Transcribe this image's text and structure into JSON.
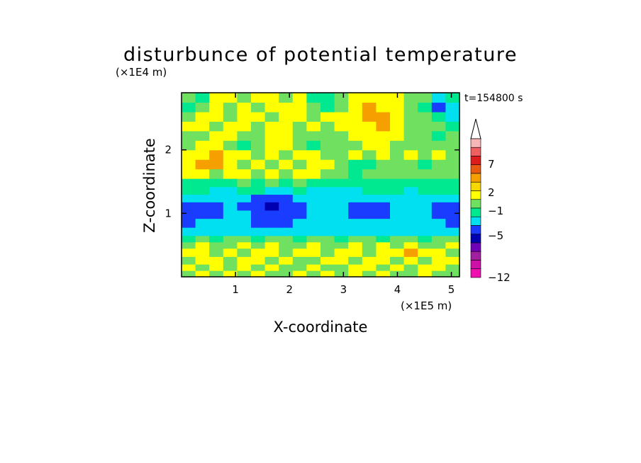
{
  "chart_data": {
    "type": "heatmap",
    "title": "disturbunce of potential temperature",
    "xlabel": "X-coordinate",
    "ylabel": "Z-coordinate",
    "x_unit": "(×1E5 m)",
    "y_unit": "(×1E4 m)",
    "time_label": "t=154800 s",
    "xlim": [
      0,
      5.15
    ],
    "ylim": [
      0,
      2.9
    ],
    "x_ticks": [
      "1",
      "2",
      "3",
      "4",
      "5"
    ],
    "y_ticks": [
      "1",
      "2"
    ],
    "colorbar": {
      "labels": [
        "7",
        "2",
        "−1",
        "−5",
        "−12"
      ],
      "levels": [
        9,
        7,
        5,
        2,
        1,
        -1,
        -2,
        -3,
        -5,
        -7,
        -9,
        -12
      ],
      "colors": [
        "#f7b7b7",
        "#f06060",
        "#dd1c1c",
        "#e85a10",
        "#f5a000",
        "#f5d800",
        "#ffff00",
        "#70e060",
        "#00e890",
        "#00e0f0",
        "#1a3cff",
        "#0000b0",
        "#7000b8",
        "#a020a0",
        "#cc10a8",
        "#f010b0"
      ]
    },
    "row_pattern": [
      {
        "z": [
          0.0,
          0.1
        ],
        "v": [
          0,
          1,
          0,
          1,
          0,
          1,
          0,
          0,
          1,
          0,
          1,
          0,
          1,
          0,
          1,
          0,
          0,
          1,
          0,
          0
        ]
      },
      {
        "z": [
          0.1,
          0.2
        ],
        "v": [
          1,
          0,
          1,
          0,
          1,
          0,
          1,
          0,
          0,
          1,
          0,
          0,
          1,
          1,
          0,
          1,
          0,
          1,
          1,
          0
        ]
      },
      {
        "z": [
          0.2,
          0.32
        ],
        "v": [
          0,
          1,
          1,
          0,
          1,
          1,
          0,
          1,
          0,
          0,
          1,
          1,
          0,
          1,
          1,
          0,
          1,
          0,
          1,
          1
        ]
      },
      {
        "z": [
          0.32,
          0.45
        ],
        "v": [
          1,
          1,
          0,
          1,
          0,
          1,
          1,
          0,
          1,
          1,
          0,
          1,
          1,
          0,
          1,
          1,
          2,
          1,
          1,
          0
        ]
      },
      {
        "z": [
          0.45,
          0.55
        ],
        "v": [
          0,
          1,
          0,
          0,
          1,
          0,
          1,
          0,
          0,
          1,
          0,
          0,
          1,
          0,
          1,
          0,
          1,
          0,
          0,
          1
        ]
      },
      {
        "z": [
          0.55,
          0.65
        ],
        "v": [
          -1,
          0,
          -1,
          0,
          0,
          -1,
          0,
          0,
          -1,
          0,
          0,
          -1,
          0,
          0,
          -1,
          0,
          0,
          -1,
          0,
          0
        ]
      },
      {
        "z": [
          0.65,
          0.78
        ],
        "v": [
          -2,
          -2,
          -2,
          -2,
          -2,
          -2,
          -2,
          -2,
          -2,
          -2,
          -2,
          -2,
          -2,
          -2,
          -2,
          -2,
          -2,
          -2,
          -2,
          -2
        ]
      },
      {
        "z": [
          0.78,
          0.92
        ],
        "v": [
          -3,
          -2,
          -2,
          -2,
          -2,
          -3,
          -3,
          -3,
          -2,
          -2,
          -2,
          -2,
          -2,
          -2,
          -2,
          -2,
          -2,
          -2,
          -2,
          -3
        ]
      },
      {
        "z": [
          0.92,
          1.05
        ],
        "v": [
          -3,
          -3,
          -3,
          -2,
          -2,
          -3,
          -3,
          -3,
          -3,
          -2,
          -2,
          -2,
          -3,
          -3,
          -3,
          -2,
          -2,
          -2,
          -3,
          -3
        ]
      },
      {
        "z": [
          1.05,
          1.18
        ],
        "v": [
          -3,
          -3,
          -3,
          -2,
          -3,
          -3,
          -4,
          -3,
          -3,
          -2,
          -2,
          -2,
          -3,
          -3,
          -3,
          -2,
          -2,
          -2,
          -3,
          -3
        ]
      },
      {
        "z": [
          1.18,
          1.3
        ],
        "v": [
          -2,
          -2,
          -2,
          -2,
          -2,
          -3,
          -3,
          -3,
          -2,
          -2,
          -2,
          -2,
          -2,
          -2,
          -2,
          -2,
          -2,
          -2,
          -2,
          -2
        ]
      },
      {
        "z": [
          1.3,
          1.42
        ],
        "v": [
          -1,
          -1,
          -2,
          -2,
          -1,
          -1,
          -2,
          -2,
          -1,
          -2,
          -2,
          -2,
          -2,
          -1,
          -1,
          -1,
          -2,
          -1,
          -1,
          -1
        ]
      },
      {
        "z": [
          1.42,
          1.55
        ],
        "v": [
          -1,
          -1,
          -1,
          -1,
          0,
          -1,
          0,
          -1,
          0,
          -1,
          -1,
          -1,
          -1,
          -1,
          -1,
          -1,
          -1,
          -1,
          -1,
          -1
        ]
      },
      {
        "z": [
          1.55,
          1.7
        ],
        "v": [
          1,
          1,
          0,
          1,
          1,
          0,
          1,
          0,
          1,
          1,
          0,
          0,
          -1,
          0,
          0,
          0,
          0,
          0,
          0,
          0
        ]
      },
      {
        "z": [
          1.7,
          1.85
        ],
        "v": [
          1,
          2,
          2,
          1,
          0,
          1,
          0,
          1,
          0,
          1,
          1,
          0,
          -1,
          -1,
          0,
          0,
          0,
          -1,
          0,
          0
        ]
      },
      {
        "z": [
          1.85,
          2.0
        ],
        "v": [
          1,
          1,
          2,
          1,
          1,
          0,
          1,
          0,
          1,
          1,
          0,
          0,
          1,
          0,
          1,
          0,
          1,
          0,
          1,
          0
        ]
      },
      {
        "z": [
          2.0,
          2.15
        ],
        "v": [
          0,
          1,
          1,
          0,
          -1,
          0,
          1,
          1,
          0,
          -1,
          0,
          0,
          0,
          1,
          1,
          0,
          0,
          0,
          0,
          0
        ]
      },
      {
        "z": [
          2.15,
          2.3
        ],
        "v": [
          0,
          0,
          1,
          1,
          0,
          0,
          1,
          1,
          0,
          0,
          0,
          0,
          1,
          1,
          1,
          1,
          0,
          0,
          -1,
          0
        ]
      },
      {
        "z": [
          2.3,
          2.45
        ],
        "v": [
          1,
          1,
          0,
          1,
          1,
          0,
          1,
          1,
          0,
          1,
          0,
          1,
          1,
          1,
          2,
          1,
          0,
          0,
          0,
          -1
        ]
      },
      {
        "z": [
          2.45,
          2.6
        ],
        "v": [
          0,
          1,
          1,
          0,
          1,
          1,
          0,
          1,
          1,
          0,
          1,
          1,
          1,
          2,
          2,
          1,
          0,
          0,
          -1,
          -2
        ]
      },
      {
        "z": [
          2.6,
          2.75
        ],
        "v": [
          -1,
          0,
          1,
          0,
          1,
          0,
          1,
          1,
          1,
          0,
          -1,
          0,
          1,
          2,
          1,
          1,
          0,
          -1,
          -3,
          -2
        ]
      },
      {
        "z": [
          2.75,
          2.9
        ],
        "v": [
          0,
          -1,
          1,
          1,
          0,
          1,
          1,
          0,
          1,
          -1,
          -1,
          0,
          1,
          1,
          1,
          1,
          0,
          0,
          -2,
          -1
        ]
      }
    ]
  }
}
